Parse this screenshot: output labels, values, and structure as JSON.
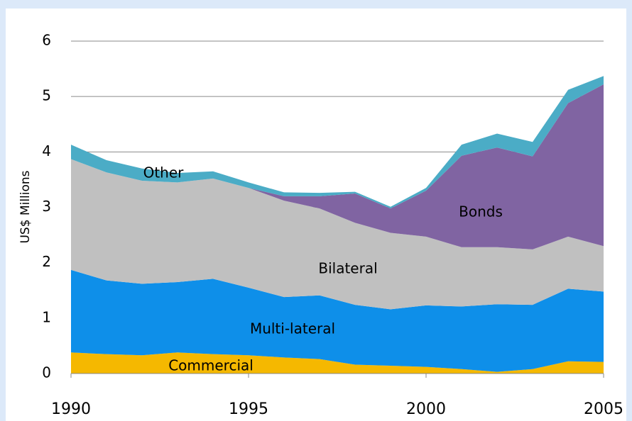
{
  "chart_data": {
    "type": "stacked_area",
    "y_label": "US$ Millions",
    "x": [
      1990,
      1991,
      1992,
      1993,
      1994,
      1995,
      1996,
      1997,
      1998,
      1999,
      2000,
      2001,
      2002,
      2003,
      2004,
      2005
    ],
    "series": [
      {
        "name": "Commercial",
        "color": "#f5b800",
        "values": [
          0.38,
          0.35,
          0.33,
          0.38,
          0.35,
          0.33,
          0.29,
          0.26,
          0.16,
          0.14,
          0.12,
          0.08,
          0.03,
          0.08,
          0.22,
          0.21
        ]
      },
      {
        "name": "Multi-lateral",
        "color": "#0e8fe9",
        "values": [
          1.49,
          1.33,
          1.29,
          1.27,
          1.36,
          1.22,
          1.09,
          1.15,
          1.08,
          1.02,
          1.11,
          1.13,
          1.22,
          1.16,
          1.31,
          1.27
        ]
      },
      {
        "name": "Bilateral",
        "color": "#c0c0c0",
        "values": [
          2.0,
          1.95,
          1.86,
          1.8,
          1.81,
          1.8,
          1.74,
          1.57,
          1.48,
          1.38,
          1.24,
          1.07,
          1.03,
          1.0,
          0.94,
          0.82
        ]
      },
      {
        "name": "Bonds",
        "color": "#8064a2",
        "values": [
          0,
          0,
          0,
          0,
          0,
          0,
          0.08,
          0.22,
          0.53,
          0.44,
          0.83,
          1.65,
          1.8,
          1.68,
          2.41,
          2.92
        ]
      },
      {
        "name": "Other",
        "color": "#4bacc6",
        "values": [
          0.26,
          0.22,
          0.22,
          0.17,
          0.13,
          0.1,
          0.07,
          0.06,
          0.03,
          0.03,
          0.05,
          0.2,
          0.25,
          0.26,
          0.24,
          0.15
        ]
      }
    ],
    "xlim": [
      1990,
      2005
    ],
    "xticks": [
      1990,
      1995,
      2000,
      2005
    ],
    "ylim": [
      0,
      6
    ],
    "yticks": [
      0,
      1,
      2,
      3,
      4,
      5,
      6
    ],
    "grid": true
  }
}
